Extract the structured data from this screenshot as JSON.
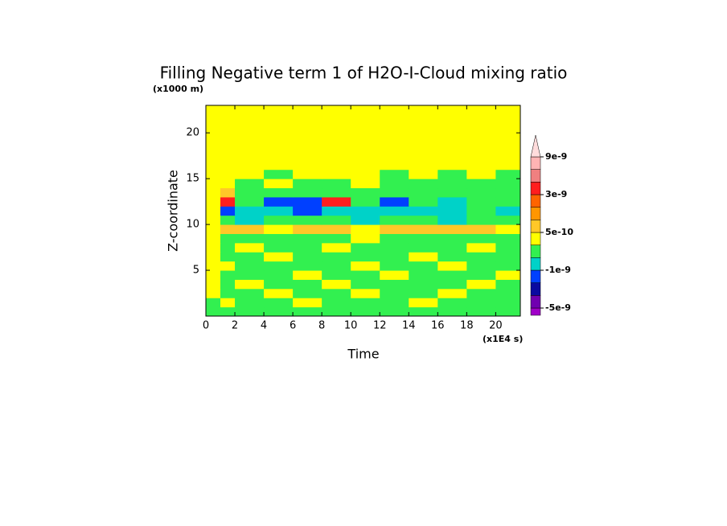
{
  "chart_data": {
    "type": "filled-contour",
    "title": "Filling Negative term 1 of H2O-I-Cloud mixing ratio",
    "y_unit": "(x1000 m)",
    "y_label": "Z-coordinate",
    "x_label": "Time",
    "x_unit": "(x1E4 s)",
    "xlim": [
      0,
      21.7
    ],
    "ylim": [
      0,
      23
    ],
    "xticks": [
      0,
      2,
      4,
      6,
      8,
      10,
      12,
      14,
      16,
      18,
      20
    ],
    "yticks": [
      5,
      10,
      15,
      20
    ],
    "x_edges": [
      0,
      1,
      2,
      4,
      6,
      8,
      10,
      12,
      14,
      16,
      18,
      20,
      21.7
    ],
    "z_edges": [
      0,
      1,
      2,
      3,
      4,
      5,
      6,
      7,
      8,
      9,
      10,
      11,
      12,
      13,
      14,
      15,
      16,
      17,
      23
    ],
    "values": [
      [
        -2e-10,
        -2e-10,
        -2e-10,
        -2e-10,
        -2e-10,
        -2e-10,
        -2e-10,
        -2e-10,
        -2e-10,
        -2e-10,
        -2e-10,
        -2e-10
      ],
      [
        -2e-10,
        2e-10,
        -2e-10,
        -2e-10,
        2e-10,
        -2e-10,
        -2e-10,
        -2e-10,
        2e-10,
        -2e-10,
        -2e-10,
        -2e-10
      ],
      [
        2e-10,
        -2e-10,
        -2e-10,
        2e-10,
        -2e-10,
        -2e-10,
        2e-10,
        -2e-10,
        -2e-10,
        2e-10,
        -2e-10,
        -2e-10
      ],
      [
        2e-10,
        -2e-10,
        2e-10,
        -2e-10,
        -2e-10,
        2e-10,
        -2e-10,
        -2e-10,
        -2e-10,
        -2e-10,
        2e-10,
        -2e-10
      ],
      [
        2e-10,
        -2e-10,
        -2e-10,
        -2e-10,
        2e-10,
        -2e-10,
        -2e-10,
        2e-10,
        -2e-10,
        -2e-10,
        -2e-10,
        2e-10
      ],
      [
        2e-10,
        2e-10,
        -2e-10,
        -2e-10,
        -2e-10,
        -2e-10,
        2e-10,
        -2e-10,
        -2e-10,
        2e-10,
        -2e-10,
        -2e-10
      ],
      [
        2e-10,
        -2e-10,
        -2e-10,
        2e-10,
        -2e-10,
        -2e-10,
        -2e-10,
        -2e-10,
        2e-10,
        -2e-10,
        -2e-10,
        -2e-10
      ],
      [
        2e-10,
        -2e-10,
        2e-10,
        -2e-10,
        -2e-10,
        2e-10,
        -2e-10,
        -2e-10,
        -2e-10,
        -2e-10,
        2e-10,
        -2e-10
      ],
      [
        2e-10,
        -2e-10,
        -2e-10,
        -2e-10,
        -2e-10,
        -2e-10,
        2e-10,
        -2e-10,
        -2e-10,
        -2e-10,
        -2e-10,
        -2e-10
      ],
      [
        2e-10,
        7e-10,
        7e-10,
        2e-10,
        7e-10,
        7e-10,
        2e-10,
        7e-10,
        7e-10,
        7e-10,
        7e-10,
        2e-10
      ],
      [
        2e-10,
        -2e-10,
        -7e-10,
        -2e-10,
        -2e-10,
        -2e-10,
        -7e-10,
        -2e-10,
        -2e-10,
        -7e-10,
        -2e-10,
        -2e-10
      ],
      [
        2e-10,
        -1.5e-09,
        -7e-10,
        -7e-10,
        -1.5e-09,
        -7e-10,
        -7e-10,
        -7e-10,
        -7e-10,
        -7e-10,
        -2e-10,
        -7e-10
      ],
      [
        2e-10,
        4e-09,
        -2e-10,
        -1.5e-09,
        -1.5e-09,
        4e-09,
        -2e-10,
        -1.5e-09,
        -2e-10,
        -7e-10,
        -2e-10,
        -2e-10
      ],
      [
        2e-10,
        7e-10,
        -2e-10,
        -2e-10,
        -2e-10,
        -2e-10,
        -2e-10,
        -2e-10,
        -2e-10,
        -2e-10,
        -2e-10,
        -2e-10
      ],
      [
        2e-10,
        2e-10,
        -2e-10,
        2e-10,
        -2e-10,
        -2e-10,
        2e-10,
        -2e-10,
        -2e-10,
        -2e-10,
        -2e-10,
        -2e-10
      ],
      [
        2e-10,
        2e-10,
        2e-10,
        -2e-10,
        2e-10,
        2e-10,
        2e-10,
        -2e-10,
        2e-10,
        -2e-10,
        2e-10,
        -2e-10
      ],
      [
        2e-10,
        2e-10,
        2e-10,
        2e-10,
        2e-10,
        2e-10,
        2e-10,
        2e-10,
        2e-10,
        2e-10,
        2e-10,
        2e-10
      ],
      [
        2e-10,
        2e-10,
        2e-10,
        2e-10,
        2e-10,
        2e-10,
        2e-10,
        2e-10,
        2e-10,
        2e-10,
        2e-10,
        2e-10
      ]
    ],
    "levels": [
      -5e-09,
      -3e-09,
      -2e-09,
      -1e-09,
      -5e-10,
      0,
      5e-10,
      1e-09,
      2e-09,
      3e-09,
      5e-09,
      7e-09,
      9e-09
    ],
    "colors": [
      "#a000c8",
      "#7000b0",
      "#0a0aa0",
      "#0040ff",
      "#00d2c8",
      "#32f050",
      "#ffff00",
      "#ffc828",
      "#ff9600",
      "#ff6400",
      "#ff1e1e",
      "#f08080",
      "#ffb4b4",
      "#ffdcdc"
    ],
    "colorbar_ticks": [
      9e-09,
      3e-09,
      5e-10,
      -1e-09,
      -5e-09
    ]
  }
}
